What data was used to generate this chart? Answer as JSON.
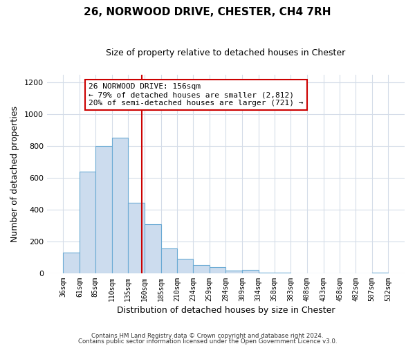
{
  "title": "26, NORWOOD DRIVE, CHESTER, CH4 7RH",
  "subtitle": "Size of property relative to detached houses in Chester",
  "xlabel": "Distribution of detached houses by size in Chester",
  "ylabel": "Number of detached properties",
  "bar_edges": [
    36,
    61,
    85,
    110,
    135,
    160,
    185,
    210,
    234,
    259,
    284,
    309,
    334,
    358,
    383,
    408,
    433,
    458,
    482,
    507,
    532
  ],
  "bar_heights": [
    130,
    640,
    800,
    855,
    445,
    310,
    155,
    90,
    50,
    40,
    15,
    20,
    5,
    5,
    0,
    0,
    0,
    0,
    0,
    5
  ],
  "bar_color": "#ccdcee",
  "bar_edge_color": "#6aaad4",
  "property_line_x": 156,
  "property_line_color": "#cc0000",
  "annotation_line1": "26 NORWOOD DRIVE: 156sqm",
  "annotation_line2": "← 79% of detached houses are smaller (2,812)",
  "annotation_line3": "20% of semi-detached houses are larger (721) →",
  "annotation_box_color": "#cc0000",
  "ylim": [
    0,
    1250
  ],
  "yticks": [
    0,
    200,
    400,
    600,
    800,
    1000,
    1200
  ],
  "footer1": "Contains HM Land Registry data © Crown copyright and database right 2024.",
  "footer2": "Contains public sector information licensed under the Open Government Licence v3.0.",
  "bg_color": "#ffffff",
  "grid_color": "#d4dce8",
  "title_fontsize": 11,
  "subtitle_fontsize": 9,
  "annot_fontsize": 8,
  "xlabel_fontsize": 9,
  "ylabel_fontsize": 9,
  "xtick_fontsize": 7,
  "ytick_fontsize": 8
}
